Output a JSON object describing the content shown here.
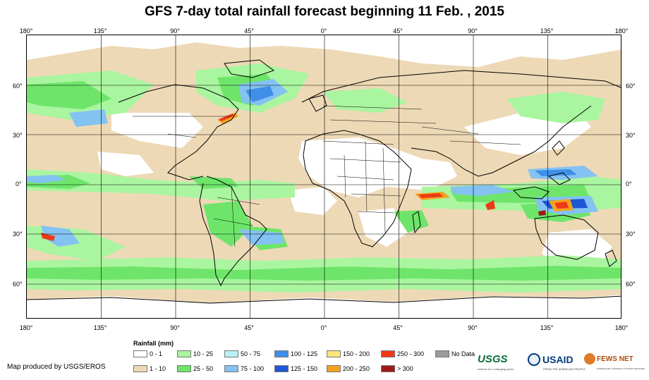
{
  "title": "GFS 7-day total rainfall forecast beginning 11 Feb. , 2015",
  "lon_labels": [
    "180°",
    "135°",
    "90°",
    "45°",
    "0°",
    "45°",
    "90°",
    "135°",
    "180°"
  ],
  "lat_labels": [
    "60°",
    "30°",
    "0°",
    "30°",
    "60°"
  ],
  "legend": {
    "title": "Rainfall (mm)",
    "items": [
      {
        "label": "0 - 1",
        "color": "#ffffff"
      },
      {
        "label": "1 - 10",
        "color": "#eed9b6"
      },
      {
        "label": "10 - 25",
        "color": "#aaf5a0"
      },
      {
        "label": "25 - 50",
        "color": "#6ee56a"
      },
      {
        "label": "50 - 75",
        "color": "#b8f2f5"
      },
      {
        "label": "75 - 100",
        "color": "#84c2f2"
      },
      {
        "label": "100 - 125",
        "color": "#3f8fe8"
      },
      {
        "label": "125 - 150",
        "color": "#1f58d4"
      },
      {
        "label": "150 - 200",
        "color": "#fde57a"
      },
      {
        "label": "200 - 250",
        "color": "#f5a21e"
      },
      {
        "label": "250 - 300",
        "color": "#ee3a16"
      },
      {
        "label": "> 300",
        "color": "#a01818"
      },
      {
        "label": "No Data",
        "color": "#9b9b9b"
      }
    ]
  },
  "credit": "Map produced by USGS/EROS",
  "logos": {
    "usgs": "USGS",
    "usgs_tagline": "science for a changing world",
    "usaid": "USAID",
    "usaid_tagline": "FROM THE AMERICAN PEOPLE",
    "fews": "FEWS NET",
    "fews_tagline": "FAMINE EARLY WARNING SYSTEMS NETWORK"
  }
}
